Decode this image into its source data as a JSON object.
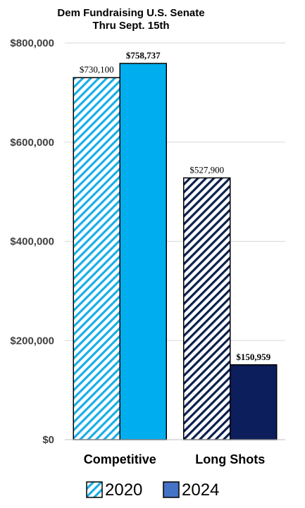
{
  "chart_data": {
    "type": "bar",
    "title_lines": [
      "Dem Fundraising U.S. Senate",
      "Thru Sept. 15th"
    ],
    "categories": [
      "Competitive",
      "Long Shots"
    ],
    "series": [
      {
        "name": "2020",
        "values": [
          730100,
          527900
        ],
        "data_labels": [
          "$730,100",
          "$527,900"
        ],
        "colors": [
          "#1aaee8",
          "#0b1f4f"
        ],
        "pattern": "diagonal-hatch"
      },
      {
        "name": "2024",
        "values": [
          758737,
          150959
        ],
        "data_labels": [
          "$758,737",
          "$150,959"
        ],
        "colors": [
          "#00aeef",
          "#0c1e5b"
        ],
        "pattern": "solid"
      }
    ],
    "ylim": [
      0,
      800000
    ],
    "yticks": [
      0,
      200000,
      400000,
      600000,
      800000
    ],
    "ytick_labels": [
      "$0",
      "$200,000",
      "$400,000",
      "$600,000",
      "$800,000"
    ],
    "grid": true,
    "legend_position": "bottom",
    "legend": [
      {
        "label": "2020",
        "swatch_color": "#1aaee8",
        "pattern": "diagonal-hatch"
      },
      {
        "label": "2024",
        "swatch_color": "#4472c4",
        "pattern": "solid"
      }
    ]
  }
}
